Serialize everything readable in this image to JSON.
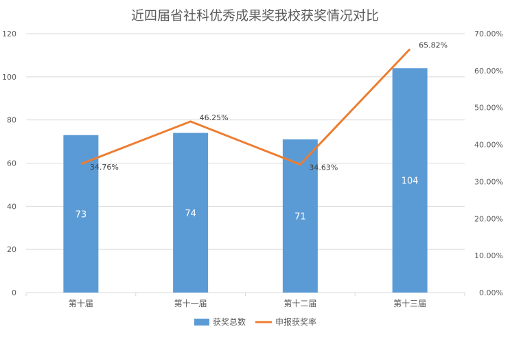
{
  "chart_data": {
    "type": "bar",
    "title": "近四届省社科优秀成果奖我校获奖情况对比",
    "categories": [
      "第十届",
      "第十一届",
      "第十二届",
      "第十三届"
    ],
    "series": [
      {
        "name": "获奖总数",
        "type": "bar",
        "axis": "left",
        "values": [
          73,
          74,
          71,
          104
        ],
        "value_labels": [
          "73",
          "74",
          "71",
          "104"
        ],
        "color": "#5b9bd5"
      },
      {
        "name": "申报获奖率",
        "type": "line",
        "axis": "right",
        "values": [
          34.76,
          46.25,
          34.63,
          65.82
        ],
        "value_labels": [
          "34.76%",
          "46.25%",
          "34.63%",
          "65.82%"
        ],
        "color": "#ed7d31"
      }
    ],
    "y_left": {
      "min": 0,
      "max": 120,
      "ticks": [
        0,
        20,
        40,
        60,
        80,
        100,
        120
      ],
      "tick_labels": [
        "0",
        "20",
        "40",
        "60",
        "80",
        "100",
        "120"
      ]
    },
    "y_right": {
      "min": 0,
      "max": 70,
      "ticks": [
        0,
        10,
        20,
        30,
        40,
        50,
        60,
        70
      ],
      "tick_labels": [
        "0.00%",
        "10.00%",
        "20.00%",
        "30.00%",
        "40.00%",
        "50.00%",
        "60.00%",
        "70.00%"
      ]
    },
    "grid": true,
    "legend_position": "bottom",
    "colors": {
      "grid": "#d9d9d9",
      "text": "#595959",
      "value_text_in_bar": "#ffffff",
      "value_text": "#404040"
    }
  }
}
